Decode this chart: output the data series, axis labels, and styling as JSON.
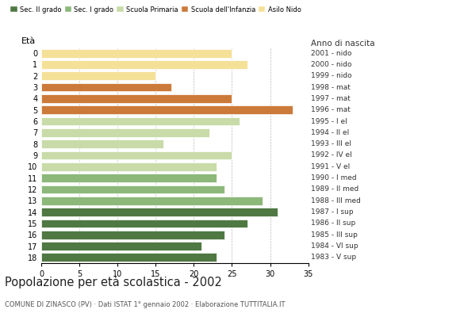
{
  "ages": [
    0,
    1,
    2,
    3,
    4,
    5,
    6,
    7,
    8,
    9,
    10,
    11,
    12,
    13,
    14,
    15,
    16,
    17,
    18
  ],
  "values": [
    25,
    27,
    15,
    17,
    25,
    33,
    26,
    22,
    16,
    25,
    23,
    23,
    24,
    29,
    31,
    27,
    24,
    21,
    23
  ],
  "right_labels": [
    "2001 - nido",
    "2000 - nido",
    "1999 - nido",
    "1998 - mat",
    "1997 - mat",
    "1996 - mat",
    "1995 - I el",
    "1994 - II el",
    "1993 - III el",
    "1992 - IV el",
    "1991 - V el",
    "1990 - I med",
    "1989 - II med",
    "1988 - III med",
    "1987 - I sup",
    "1986 - II sup",
    "1985 - III sup",
    "1984 - VI sup",
    "1983 - V sup"
  ],
  "colors": [
    "#f5e098",
    "#f5e098",
    "#f5e098",
    "#cc7a3a",
    "#cc7a3a",
    "#cc7a3a",
    "#c8dba8",
    "#c8dba8",
    "#c8dba8",
    "#c8dba8",
    "#c8dba8",
    "#8cb87a",
    "#8cb87a",
    "#8cb87a",
    "#4f7842",
    "#4f7842",
    "#4f7842",
    "#4f7842",
    "#4f7842"
  ],
  "legend_labels": [
    "Sec. II grado",
    "Sec. I grado",
    "Scuola Primaria",
    "Scuola dell'Infanzia",
    "Asilo Nido"
  ],
  "legend_colors": [
    "#4f7842",
    "#8cb87a",
    "#c8dba8",
    "#cc7a3a",
    "#f5e098"
  ],
  "title": "Popolazione per età scolastica - 2002",
  "subtitle": "COMUNE DI ZINASCO (PV) · Dati ISTAT 1° gennaio 2002 · Elaborazione TUTTITALIA.IT",
  "eta_label": "Età",
  "anno_label": "Anno di nascita",
  "xlim": [
    0,
    35
  ],
  "xticks": [
    0,
    5,
    10,
    15,
    20,
    25,
    30,
    35
  ],
  "bar_height": 0.75,
  "figsize": [
    5.8,
    4.0
  ],
  "dpi": 100
}
